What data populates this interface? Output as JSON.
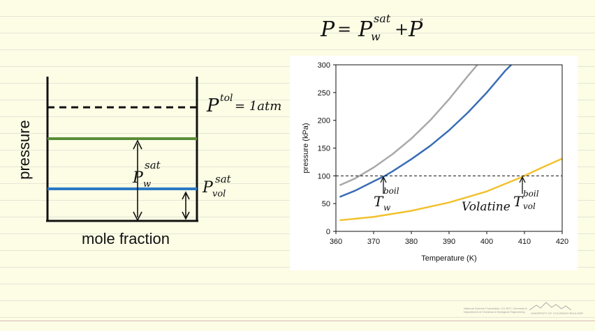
{
  "equation": {
    "lhs": "P",
    "equals": "=",
    "main": "P",
    "sub": "w",
    "sup": "sat",
    "plus": "+",
    "second": "P",
    "second_sup": "°"
  },
  "left_diagram": {
    "ylabel": "pressure",
    "xlabel": "mole fraction",
    "total_label": "P",
    "total_sup": "tol",
    "total_value": "= 1atm",
    "water_label": "P",
    "water_sub": "w",
    "water_sup": "sat",
    "vol_label": "P",
    "vol_sub": "vol",
    "vol_sup": "sat",
    "colors": {
      "total": "#111111",
      "water": "#5b8c3a",
      "volatile": "#2b79c4"
    }
  },
  "chart_data": {
    "type": "line",
    "xlabel": "Temperature (K)",
    "ylabel": "pressure (kPa)",
    "xlim": [
      360,
      420
    ],
    "ylim": [
      0,
      300
    ],
    "xticks": [
      360,
      370,
      380,
      390,
      400,
      410,
      420
    ],
    "yticks": [
      0,
      50,
      100,
      150,
      200,
      250,
      300
    ],
    "grid": false,
    "reference_line": {
      "y": 100,
      "style": "dashed",
      "color": "#111111"
    },
    "series": [
      {
        "color": "#a9a9a9",
        "x": [
          361,
          365,
          370,
          375,
          380,
          385,
          390,
          395,
          397.5
        ],
        "y": [
          83,
          95,
          115,
          139,
          167,
          200,
          238,
          280,
          300
        ]
      },
      {
        "color": "#3a6db5",
        "x": [
          361,
          365,
          370,
          373,
          375,
          380,
          385,
          390,
          395,
          400,
          405,
          406.5
        ],
        "y": [
          62,
          73,
          90,
          100,
          108,
          130,
          154,
          182,
          214,
          250,
          290,
          300
        ]
      },
      {
        "color": "#f2c12e",
        "x": [
          361,
          370,
          380,
          390,
          400,
          409,
          415,
          420
        ],
        "y": [
          20,
          26,
          37,
          52,
          72,
          97,
          116,
          131
        ]
      }
    ],
    "annotations": {
      "water_label": "T",
      "water_sup": "boil",
      "water_sub": "w",
      "volatile_word": "Volatine",
      "vol_label": "T",
      "vol_sup": "boil",
      "vol_sub": "vol"
    }
  },
  "footer": {
    "credit_line1": "National Science Foundation, CU-EDT, Chemical &",
    "credit_line2": "Department of Chemical & Biological Engineering",
    "university": "UNIVERSITY OF COLORADO BOULDER"
  }
}
